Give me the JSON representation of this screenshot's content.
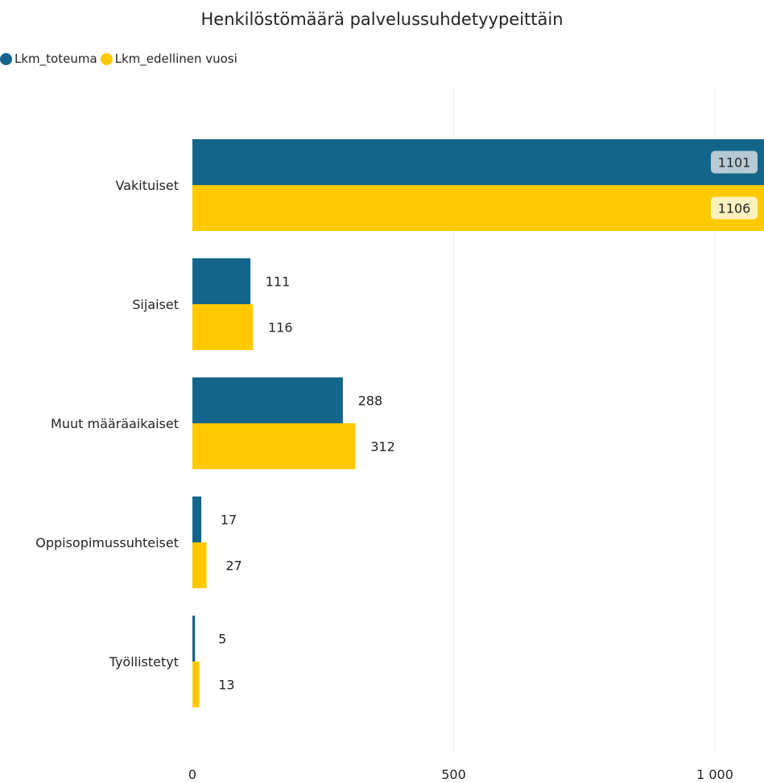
{
  "chart_data": {
    "type": "bar",
    "orientation": "horizontal",
    "title": "Henkilöstömäärä palvelussuhdetyypeittäin",
    "categories": [
      "Vakituiset",
      "Sijaiset",
      "Muut määräaikaiset",
      "Oppisopimussuhteiset",
      "Työllistetyt"
    ],
    "series": [
      {
        "name": "Lkm_toteuma",
        "color": "#13658a",
        "values": [
          1101,
          111,
          288,
          17,
          5
        ]
      },
      {
        "name": "Lkm_edellinen vuosi",
        "color": "#ffc900",
        "values": [
          1106,
          116,
          312,
          27,
          13
        ]
      }
    ],
    "xlim": [
      0,
      1000
    ],
    "xticks": [
      {
        "value": 0,
        "label": "0"
      },
      {
        "value": 500,
        "label": "500"
      },
      {
        "value": 1000,
        "label": "1 000"
      }
    ],
    "grid": true,
    "legend_position": "top-left"
  }
}
